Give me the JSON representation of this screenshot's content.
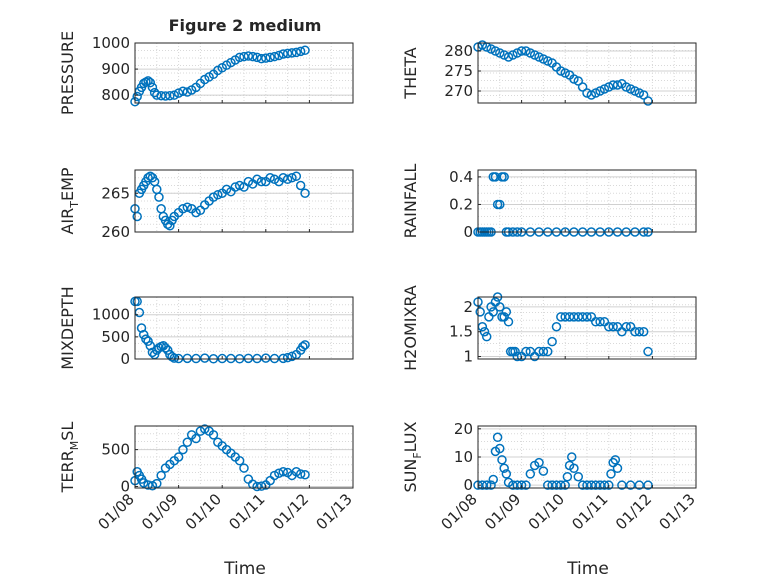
{
  "figure": {
    "title": "Figure 2 medium",
    "x_tick_labels": [
      "01/08",
      "01/09",
      "01/10",
      "01/11",
      "01/12",
      "01/13"
    ],
    "x_axis_label": "Time"
  },
  "chart_data": [
    {
      "type": "scatter",
      "ylabel": "PRESSURE",
      "ylim": [
        770,
        1000
      ],
      "yticks": [
        800,
        900,
        1000
      ],
      "xlim": [
        0,
        5
      ],
      "grid": true,
      "x": [
        0,
        0.05,
        0.1,
        0.15,
        0.2,
        0.25,
        0.3,
        0.35,
        0.4,
        0.45,
        0.5,
        0.6,
        0.7,
        0.8,
        0.9,
        1.0,
        1.1,
        1.2,
        1.3,
        1.4,
        1.5,
        1.6,
        1.7,
        1.8,
        1.9,
        2.0,
        2.1,
        2.2,
        2.3,
        2.4,
        2.5,
        2.6,
        2.7,
        2.8,
        2.9,
        3.0,
        3.1,
        3.2,
        3.3,
        3.4,
        3.5,
        3.6,
        3.7,
        3.8,
        3.9
      ],
      "y": [
        775,
        795,
        815,
        830,
        845,
        850,
        855,
        848,
        830,
        810,
        800,
        798,
        797,
        798,
        800,
        808,
        815,
        812,
        820,
        830,
        845,
        860,
        870,
        880,
        895,
        905,
        915,
        925,
        935,
        945,
        948,
        950,
        948,
        945,
        940,
        942,
        945,
        948,
        952,
        958,
        960,
        962,
        964,
        968,
        972
      ]
    },
    {
      "type": "scatter",
      "ylabel": "THETA",
      "ylim": [
        267,
        282
      ],
      "yticks": [
        270,
        275,
        280
      ],
      "xlim": [
        0,
        5
      ],
      "grid": true,
      "x": [
        0,
        0.1,
        0.2,
        0.3,
        0.4,
        0.5,
        0.6,
        0.7,
        0.8,
        0.9,
        1.0,
        1.1,
        1.2,
        1.3,
        1.4,
        1.5,
        1.6,
        1.7,
        1.8,
        1.9,
        2.0,
        2.1,
        2.2,
        2.3,
        2.4,
        2.5,
        2.6,
        2.7,
        2.8,
        2.9,
        3.0,
        3.1,
        3.2,
        3.3,
        3.4,
        3.5,
        3.6,
        3.7,
        3.8,
        3.9
      ],
      "y": [
        281,
        281.5,
        281,
        280.5,
        280,
        279.5,
        279,
        278.5,
        279,
        279.5,
        280,
        280,
        279.5,
        279,
        278.5,
        278,
        277.5,
        277,
        276,
        275,
        274.5,
        274,
        273,
        272.5,
        271,
        269.5,
        269,
        269.5,
        270,
        270.5,
        271,
        271.5,
        271.5,
        271.8,
        271,
        270.5,
        270,
        269.5,
        269,
        267.5
      ]
    },
    {
      "type": "scatter",
      "ylabel": "AIR_TEMP",
      "ylim": [
        260,
        268
      ],
      "yticks": [
        260,
        265
      ],
      "xlim": [
        0,
        5
      ],
      "grid": true,
      "x": [
        0,
        0.05,
        0.1,
        0.15,
        0.2,
        0.25,
        0.3,
        0.35,
        0.4,
        0.45,
        0.5,
        0.55,
        0.6,
        0.65,
        0.7,
        0.75,
        0.8,
        0.85,
        0.9,
        1.0,
        1.1,
        1.2,
        1.3,
        1.4,
        1.5,
        1.6,
        1.7,
        1.8,
        1.9,
        2.0,
        2.1,
        2.2,
        2.3,
        2.4,
        2.5,
        2.6,
        2.7,
        2.8,
        2.9,
        3.0,
        3.1,
        3.2,
        3.3,
        3.4,
        3.5,
        3.6,
        3.7,
        3.8,
        3.9
      ],
      "y": [
        263,
        262,
        265,
        265.5,
        266,
        266.5,
        267,
        267.2,
        267,
        266.5,
        265.5,
        264.5,
        263,
        262,
        261.5,
        261,
        260.8,
        261.5,
        262,
        262.5,
        263,
        263.2,
        263,
        262.5,
        262.8,
        263.5,
        264,
        264.5,
        264.8,
        265,
        265.5,
        265.2,
        265.8,
        266,
        265.8,
        266.5,
        266.2,
        266.8,
        266.5,
        266.5,
        267,
        266.8,
        266.5,
        267,
        266.8,
        267,
        267.2,
        266,
        265
      ]
    },
    {
      "type": "scatter",
      "ylabel": "RAINFALL",
      "ylim": [
        0,
        0.45
      ],
      "yticks": [
        0,
        0.2,
        0.4
      ],
      "xlim": [
        0,
        5
      ],
      "grid": true,
      "x": [
        0,
        0.05,
        0.1,
        0.15,
        0.2,
        0.25,
        0.3,
        0.35,
        0.4,
        0.45,
        0.5,
        0.55,
        0.6,
        0.65,
        0.7,
        0.8,
        0.9,
        1.0,
        1.2,
        1.4,
        1.6,
        1.8,
        2.0,
        2.2,
        2.4,
        2.6,
        2.8,
        3.0,
        3.2,
        3.4,
        3.6,
        3.8,
        3.9
      ],
      "y": [
        0,
        0,
        0,
        0,
        0,
        0,
        0,
        0.4,
        0.4,
        0.2,
        0.2,
        0.4,
        0.4,
        0,
        0,
        0,
        0,
        0,
        0,
        0,
        0,
        0,
        0,
        0,
        0,
        0,
        0,
        0,
        0,
        0,
        0,
        0,
        0
      ]
    },
    {
      "type": "scatter",
      "ylabel": "MIXDEPTH",
      "ylim": [
        0,
        1400
      ],
      "yticks": [
        0,
        500,
        1000
      ],
      "xlim": [
        0,
        5
      ],
      "grid": true,
      "x": [
        0,
        0.05,
        0.1,
        0.15,
        0.2,
        0.25,
        0.3,
        0.35,
        0.4,
        0.45,
        0.5,
        0.55,
        0.6,
        0.65,
        0.7,
        0.75,
        0.8,
        0.85,
        0.9,
        1.0,
        1.2,
        1.4,
        1.6,
        1.8,
        2.0,
        2.2,
        2.4,
        2.6,
        2.8,
        3.0,
        3.2,
        3.4,
        3.5,
        3.6,
        3.7,
        3.8,
        3.85,
        3.9
      ],
      "y": [
        1300,
        1300,
        1050,
        700,
        550,
        450,
        400,
        300,
        150,
        100,
        200,
        250,
        280,
        300,
        250,
        200,
        100,
        50,
        20,
        10,
        15,
        10,
        20,
        5,
        10,
        10,
        5,
        15,
        10,
        20,
        10,
        15,
        30,
        60,
        100,
        200,
        280,
        320
      ]
    },
    {
      "type": "scatter",
      "ylabel": "H2OMIXRA",
      "ylim": [
        0.95,
        2.2
      ],
      "yticks": [
        1,
        1.5,
        2
      ],
      "xlim": [
        0,
        5
      ],
      "grid": true,
      "x": [
        0,
        0.05,
        0.1,
        0.15,
        0.2,
        0.25,
        0.3,
        0.35,
        0.4,
        0.45,
        0.5,
        0.55,
        0.6,
        0.65,
        0.7,
        0.75,
        0.8,
        0.85,
        0.9,
        1.0,
        1.1,
        1.2,
        1.3,
        1.4,
        1.5,
        1.6,
        1.7,
        1.8,
        1.9,
        2.0,
        2.1,
        2.2,
        2.3,
        2.4,
        2.5,
        2.6,
        2.7,
        2.8,
        2.9,
        3.0,
        3.1,
        3.2,
        3.3,
        3.4,
        3.5,
        3.6,
        3.7,
        3.8,
        3.9
      ],
      "y": [
        2.1,
        1.9,
        1.6,
        1.5,
        1.4,
        1.8,
        2.0,
        1.9,
        2.1,
        2.2,
        2.0,
        1.8,
        1.8,
        1.9,
        1.7,
        1.1,
        1.1,
        1.1,
        1.0,
        1.0,
        1.1,
        1.1,
        1.0,
        1.1,
        1.1,
        1.1,
        1.3,
        1.6,
        1.8,
        1.8,
        1.8,
        1.8,
        1.8,
        1.8,
        1.8,
        1.8,
        1.7,
        1.7,
        1.7,
        1.6,
        1.6,
        1.6,
        1.5,
        1.6,
        1.6,
        1.5,
        1.5,
        1.5,
        1.1
      ]
    },
    {
      "type": "scatter",
      "ylabel": "TERR_MSL",
      "ylim": [
        -20,
        820
      ],
      "yticks": [
        0,
        500
      ],
      "xlim": [
        0,
        5
      ],
      "grid": true,
      "x": [
        0,
        0.05,
        0.1,
        0.15,
        0.2,
        0.3,
        0.4,
        0.5,
        0.6,
        0.7,
        0.8,
        0.9,
        1.0,
        1.1,
        1.2,
        1.3,
        1.4,
        1.5,
        1.6,
        1.7,
        1.8,
        1.9,
        2.0,
        2.1,
        2.2,
        2.3,
        2.4,
        2.5,
        2.6,
        2.7,
        2.8,
        2.9,
        3.0,
        3.1,
        3.2,
        3.3,
        3.4,
        3.5,
        3.6,
        3.7,
        3.8,
        3.9
      ],
      "y": [
        80,
        200,
        150,
        100,
        50,
        20,
        10,
        40,
        150,
        250,
        300,
        350,
        400,
        500,
        600,
        700,
        650,
        750,
        780,
        750,
        700,
        600,
        550,
        500,
        450,
        400,
        350,
        250,
        100,
        30,
        0,
        5,
        20,
        80,
        150,
        180,
        200,
        190,
        150,
        200,
        170,
        160
      ]
    },
    {
      "type": "scatter",
      "ylabel": "SUN_FLUX",
      "ylim": [
        -1,
        21
      ],
      "yticks": [
        0,
        10,
        20
      ],
      "xlim": [
        0,
        5
      ],
      "grid": true,
      "x": [
        0,
        0.1,
        0.2,
        0.3,
        0.35,
        0.4,
        0.45,
        0.5,
        0.55,
        0.6,
        0.65,
        0.7,
        0.8,
        0.9,
        1.0,
        1.1,
        1.2,
        1.3,
        1.4,
        1.5,
        1.6,
        1.7,
        1.8,
        1.9,
        2.0,
        2.05,
        2.1,
        2.15,
        2.2,
        2.3,
        2.4,
        2.5,
        2.6,
        2.7,
        2.8,
        2.9,
        3.0,
        3.05,
        3.1,
        3.15,
        3.2,
        3.3,
        3.5,
        3.7,
        3.9
      ],
      "y": [
        0,
        0,
        0,
        0,
        2,
        12,
        17,
        13,
        9,
        6,
        4,
        1,
        0,
        0,
        0,
        0,
        4,
        7,
        8,
        5,
        0,
        0,
        0,
        0,
        0,
        3,
        7,
        10,
        6,
        3,
        0,
        0,
        0,
        0,
        0,
        0,
        0,
        4,
        8,
        9,
        6,
        0,
        0,
        0,
        0
      ]
    }
  ]
}
